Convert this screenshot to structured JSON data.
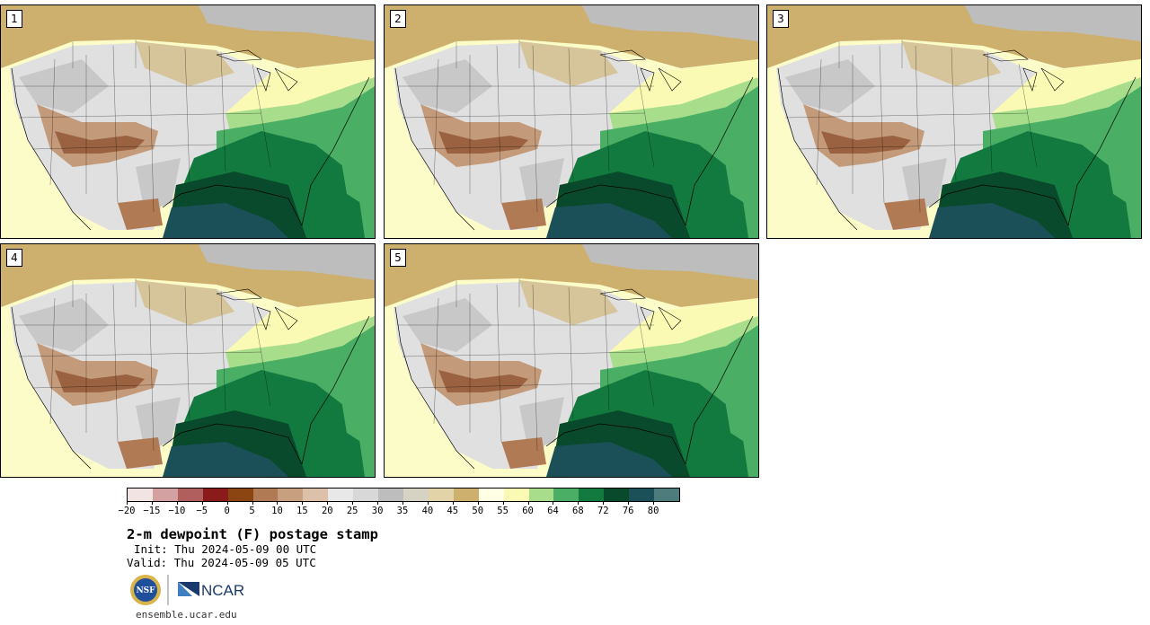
{
  "panels": [
    {
      "member": "1"
    },
    {
      "member": "2"
    },
    {
      "member": "3"
    },
    {
      "member": "4"
    },
    {
      "member": "5"
    }
  ],
  "colorbar": {
    "colors": [
      "#f3e4e4",
      "#d3a1a1",
      "#b05e5e",
      "#8b1a1a",
      "#8b4513",
      "#b07a55",
      "#c8a080",
      "#dcc0aa",
      "#e8e8e8",
      "#d8d8d8",
      "#bdbdbd",
      "#d6d2c4",
      "#e3d3a8",
      "#cdb06e",
      "#ffffe6",
      "#fafab4",
      "#a8dd8c",
      "#4bae65",
      "#127a3e",
      "#0a4a2c",
      "#1b5058",
      "#4e7c7c"
    ],
    "ticks": [
      "−20",
      "−15",
      "−10",
      "−5",
      "0",
      "5",
      "10",
      "15",
      "20",
      "25",
      "30",
      "35",
      "40",
      "45",
      "50",
      "55",
      "60",
      "64",
      "68",
      "72",
      "76",
      "80"
    ]
  },
  "title": "2-m dewpoint (F) postage stamp",
  "init": "Init: Thu 2024-05-09 00 UTC",
  "valid": "Valid: Thu 2024-05-09 05 UTC",
  "logos": {
    "nsf": "NSF",
    "ncar": "NCAR"
  },
  "url": "ensemble.ucar.edu"
}
